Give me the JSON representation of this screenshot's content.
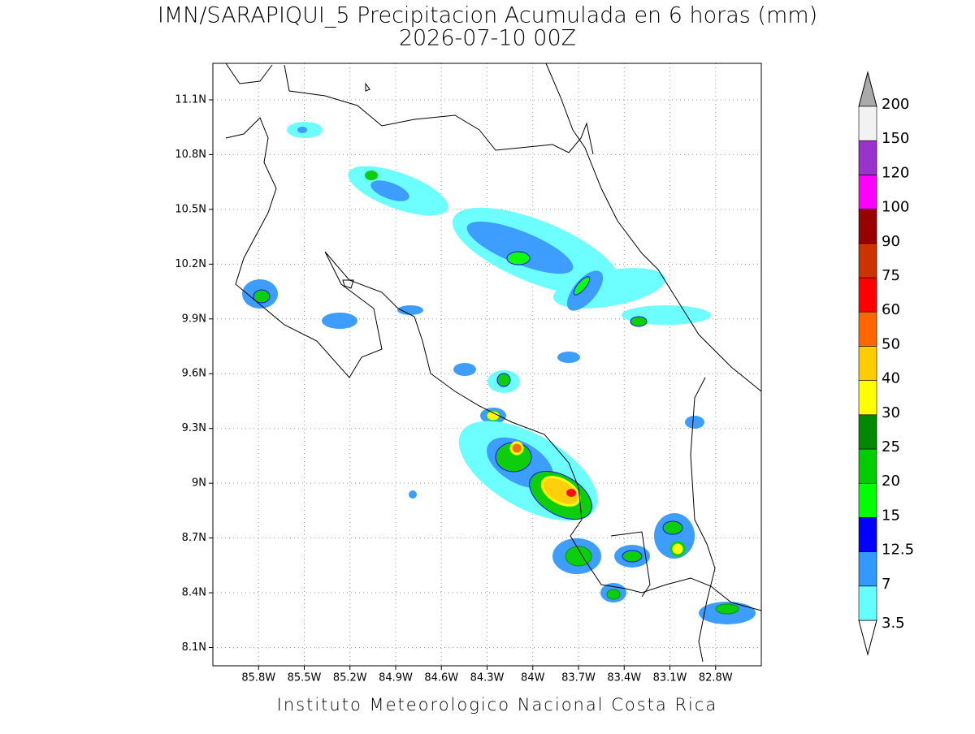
{
  "header": {
    "title": "IMN/SARAPIQUI_5 Precipitacion Acumulada en 6 horas (mm)",
    "subtitle": "2026-07-10 00Z"
  },
  "map": {
    "lonlim": [
      -86.1,
      -82.5
    ],
    "latlim": [
      8.0,
      11.3
    ],
    "grid": true,
    "lat_ticks": [
      {
        "value": 11.1,
        "label": "11.1N"
      },
      {
        "value": 10.8,
        "label": "10.8N"
      },
      {
        "value": 10.5,
        "label": "10.5N"
      },
      {
        "value": 10.2,
        "label": "10.2N"
      },
      {
        "value": 9.9,
        "label": "9.9N"
      },
      {
        "value": 9.6,
        "label": "9.6N"
      },
      {
        "value": 9.3,
        "label": "9.3N"
      },
      {
        "value": 9.0,
        "label": "9N"
      },
      {
        "value": 8.7,
        "label": "8.7N"
      },
      {
        "value": 8.4,
        "label": "8.4N"
      },
      {
        "value": 8.1,
        "label": "8.1N"
      }
    ],
    "lon_ticks": [
      {
        "value": -85.8,
        "label": "85.8W"
      },
      {
        "value": -85.5,
        "label": "85.5W"
      },
      {
        "value": -85.2,
        "label": "85.2W"
      },
      {
        "value": -84.9,
        "label": "84.9W"
      },
      {
        "value": -84.6,
        "label": "84.6W"
      },
      {
        "value": -84.3,
        "label": "84.3W"
      },
      {
        "value": -84.0,
        "label": "84W"
      },
      {
        "value": -83.7,
        "label": "83.7W"
      },
      {
        "value": -83.4,
        "label": "83.4W"
      },
      {
        "value": -83.1,
        "label": "83.1W"
      },
      {
        "value": -82.8,
        "label": "82.8W"
      }
    ]
  },
  "colorbar": {
    "levels": [
      3.5,
      7,
      12.5,
      15,
      20,
      25,
      30,
      40,
      50,
      60,
      75,
      90,
      100,
      120,
      150,
      200
    ],
    "colors": [
      "#66ffff",
      "#3399ff",
      "#0000ff",
      "#00ff00",
      "#00cc00",
      "#008800",
      "#ffff00",
      "#ffcc00",
      "#ff6600",
      "#ff0000",
      "#cc3300",
      "#990000",
      "#ff00ff",
      "#9933cc",
      "#f2f2f2"
    ],
    "over_color": "#aaaaaa",
    "under_color": "#ffffff"
  },
  "footer": "Instituto Meteorologico Nacional Costa Rica"
}
